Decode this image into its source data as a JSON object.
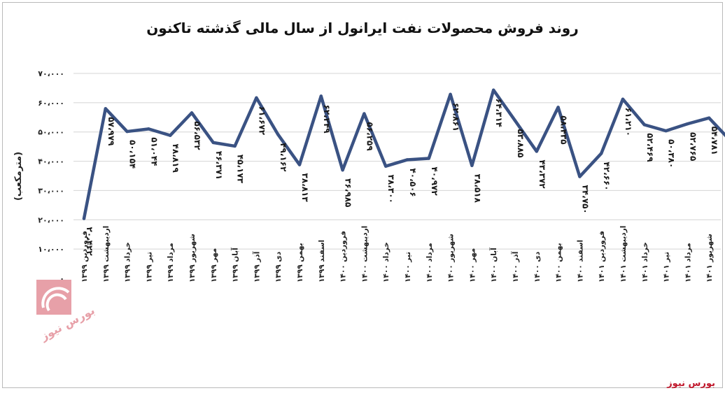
{
  "chart_data": {
    "type": "line",
    "title": "روند فروش محصولات نفت ایرانول از سال مالی گذشته تاکنون",
    "ylabel": "(مترمکعب)",
    "xlabel": "",
    "ylim": [
      0,
      70000
    ],
    "y_ticks": [
      "۰",
      "۱۰،۰۰۰",
      "۲۰،۰۰۰",
      "۳۰،۰۰۰",
      "۴۰،۰۰۰",
      "۵۰،۰۰۰",
      "۶۰،۰۰۰",
      "۷۰،۰۰۰"
    ],
    "grid": true,
    "categories": [
      "فروردین ۱۳۹۹",
      "اردیبهشت ۱۳۹۹",
      "خرداد ۱۳۹۹",
      "تیر ۱۳۹۹",
      "مرداد ۱۳۹۹",
      "شهریور ۱۳۹۹",
      "مهر ۱۳۹۹",
      "آبان ۱۳۹۹",
      "آذر ۱۳۹۹",
      "دی ۱۳۹۹",
      "بهمن ۱۳۹۹",
      "اسفند ۱۳۹۹",
      "فروردین ۱۴۰۰",
      "اردیبهشت ۱۴۰۰",
      "خرداد ۱۴۰۰",
      "تیر ۱۴۰۰",
      "مرداد ۱۴۰۰",
      "شهریور ۱۴۰۰",
      "مهر ۱۴۰۰",
      "آبان ۱۴۰۰",
      "آذر ۱۴۰۰",
      "دی ۱۴۰۰",
      "بهمن ۱۴۰۰",
      "اسفند ۱۴۰۰",
      "فروردین ۱۴۰۱",
      "اردیبهشت ۱۴۰۱",
      "خرداد ۱۴۰۱",
      "تیر ۱۴۰۱",
      "مرداد ۱۴۰۱",
      "شهریور ۱۴۰۱",
      "مهر ۱۴۰۱"
    ],
    "values": [
      20422,
      57979,
      50154,
      51044,
      48819,
      56532,
      46371,
      45173,
      61672,
      49162,
      38813,
      62249,
      36985,
      56259,
      38300,
      40506,
      40972,
      62861,
      38518,
      64314,
      53885,
      43372,
      58435,
      34750,
      42660,
      61210,
      52469,
      50380,
      52765,
      54781,
      46968
    ],
    "value_labels": [
      "۲۰،۴۲۲",
      "۵۷،۹۷۹",
      "۵۰،۱۵۴",
      "۵۱،۰۴۴",
      "۴۸،۸۱۹",
      "۵۶،۵۳۲",
      "۴۶،۳۷۱",
      "۴۵،۱۷۳",
      "۶۱،۶۷۲",
      "۴۹،۱۶۲",
      "۳۸،۸۱۳",
      "۶۲،۲۴۹",
      "۳۶،۹۸۵",
      "۵۶،۲۵۹",
      "۳۸،۳۰۰",
      "۴۰،۵۰۶",
      "۴۰،۹۷۲",
      "۶۲،۸۶۱",
      "۳۸،۵۱۸",
      "۶۴،۳۱۴",
      "۵۳،۸۸۵",
      "۴۳،۳۷۲",
      "۵۸،۴۳۵",
      "۳۴،۷۵۰",
      "۴۲،۶۶۰",
      "۶۱،۲۱۰",
      "۵۲،۴۶۹",
      "۵۰،۳۸۰",
      "۵۲،۷۶۵",
      "۵۴،۷۸۱",
      "۴۶،۹۶۸"
    ],
    "line_color": "#3a5283"
  },
  "source_label": "بورس نیوز",
  "watermark_text": "بورس نیوز"
}
